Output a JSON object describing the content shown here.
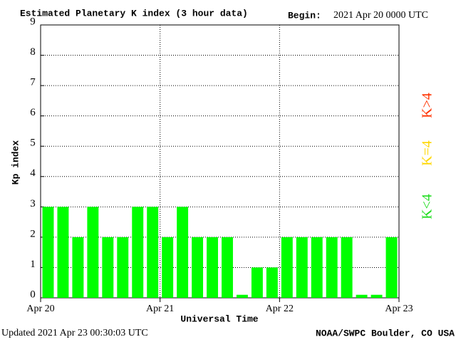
{
  "chart_data": {
    "type": "bar",
    "title": "Estimated Planetary K index (3 hour data)",
    "annotations": {
      "begin_label": "Begin:",
      "begin_value": "2021 Apr 20 0000 UTC",
      "updated": "Updated 2021 Apr 23 00:30:03 UTC",
      "credit": "NOAA/SWPC Boulder, CO USA"
    },
    "x_label": "Universal Time",
    "y_label": "Kp index",
    "x": [
      0,
      3,
      6,
      9,
      12,
      15,
      18,
      21,
      24,
      27,
      30,
      33,
      36,
      39,
      42,
      45,
      48,
      51,
      54,
      57,
      60,
      63,
      66,
      69
    ],
    "bar_width": 3,
    "series": [
      {
        "color": "#00ff00",
        "values": [
          3,
          3,
          2,
          3,
          2,
          2,
          3,
          3,
          2,
          3,
          2,
          2,
          2,
          0.1,
          1,
          1,
          2,
          2,
          2,
          2,
          2,
          0.1,
          0.1,
          2
        ]
      }
    ],
    "xlim": [
      0,
      72
    ],
    "xticks": [
      {
        "value": 0,
        "label": "Apr 20"
      },
      {
        "value": 24,
        "label": "Apr 21"
      },
      {
        "value": 48,
        "label": "Apr 22"
      },
      {
        "value": 72,
        "label": "Apr 23"
      }
    ],
    "ylim": [
      0,
      9
    ],
    "yticks": [
      0,
      1,
      2,
      3,
      4,
      5,
      6,
      7,
      8,
      9
    ],
    "grid": true,
    "legend": [
      {
        "name": "K<4",
        "color": "#22dd22"
      },
      {
        "name": "K=4",
        "color": "#ffd700"
      },
      {
        "name": "K>4",
        "color": "#ff3300"
      }
    ]
  }
}
